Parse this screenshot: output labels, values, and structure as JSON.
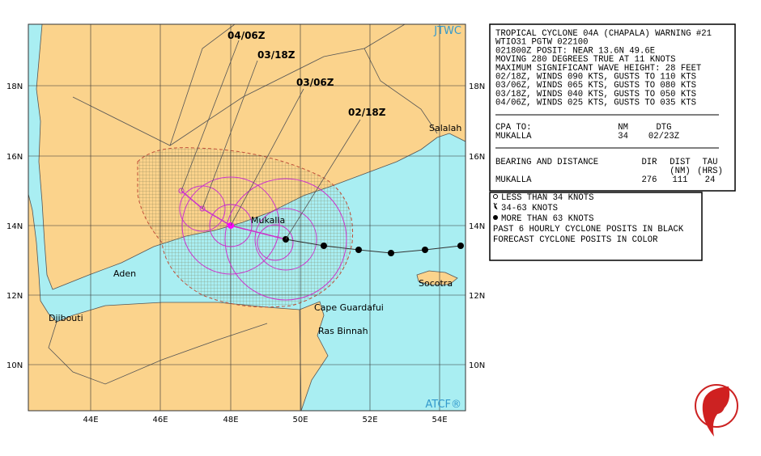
{
  "map": {
    "source_top": "JTWC",
    "source_bottom": "ATCF®",
    "lat_labels": [
      "18N",
      "16N",
      "14N",
      "12N",
      "10N"
    ],
    "lon_labels": [
      "44E",
      "46E",
      "48E",
      "50E",
      "52E",
      "54E"
    ],
    "places": [
      "Salalah",
      "Mukalla",
      "Aden",
      "Djibouti",
      "Socotra",
      "Cape Guardafui",
      "Ras Binnah"
    ],
    "forecast_times": [
      "04/06Z",
      "03/18Z",
      "03/06Z",
      "02/18Z"
    ]
  },
  "warning": {
    "lines": [
      "TROPICAL CYCLONE 04A (CHAPALA) WARNING #21",
      "WTIO31 PGTW 022100",
      "021800Z POSIT: NEAR 13.6N 49.6E",
      "MOVING 280 DEGREES TRUE AT 11 KNOTS",
      "MAXIMUM SIGNIFICANT WAVE HEIGHT: 28 FEET",
      "02/18Z, WINDS 090 KTS, GUSTS TO 110 KTS",
      "03/06Z, WINDS 065 KTS, GUSTS TO 080 KTS",
      "03/18Z, WINDS 040 KTS, GUSTS TO 050 KTS",
      "04/06Z, WINDS 025 KTS, GUSTS TO 035 KTS"
    ],
    "cpa": {
      "header": [
        "CPA TO:",
        "NM",
        "DTG"
      ],
      "row": [
        "MUKALLA",
        34,
        "02/23Z"
      ]
    },
    "bearing": {
      "header": [
        "BEARING AND DISTANCE",
        "DIR",
        "DIST",
        "TAU"
      ],
      "subheader": [
        "(NM)",
        "(HRS)"
      ],
      "row": [
        "MUKALLA",
        276,
        111,
        24
      ]
    }
  },
  "legend": {
    "lines": [
      "LESS THAN 34 KNOTS",
      "34-63 KNOTS",
      "MORE THAN 63 KNOTS",
      "PAST 6 HOURLY CYCLONE POSITS IN BLACK",
      "FORECAST CYCLONE POSITS IN COLOR"
    ]
  }
}
